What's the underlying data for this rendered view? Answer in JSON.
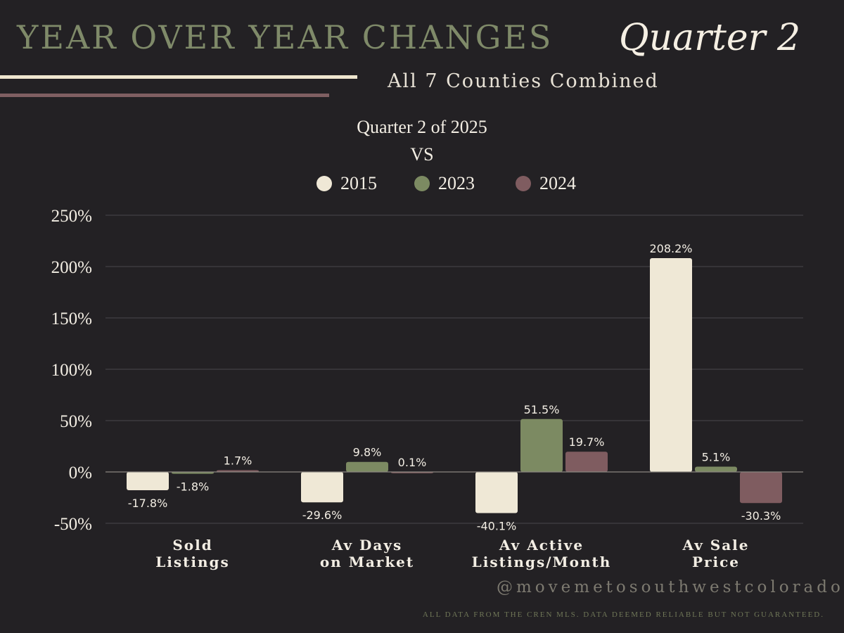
{
  "header": {
    "title": "YEAR OVER YEAR CHANGES",
    "quarter": "Quarter 2",
    "subtitle": "All 7 Counties Combined"
  },
  "footer": {
    "handle": "@movemetosouthwestcolorado",
    "disclaimer": "ALL DATA FROM THE CREN MLS. DATA DEEMED RELIABLE BUT NOT GUARANTEED."
  },
  "chart_data": {
    "type": "bar",
    "title_line1": "Quarter 2 of 2025",
    "title_line2": "VS",
    "categories": [
      [
        "Sold",
        "Listings"
      ],
      [
        "Av Days",
        "on Market"
      ],
      [
        "Av Active",
        "Listings/Month"
      ],
      [
        "Av Sale",
        "Price"
      ]
    ],
    "series": [
      {
        "name": "2015",
        "color": "#efe8d6",
        "values": [
          -17.8,
          -29.6,
          -40.1,
          208.2
        ]
      },
      {
        "name": "2023",
        "color": "#7c8a62",
        "values": [
          -1.8,
          9.8,
          51.5,
          5.1
        ]
      },
      {
        "name": "2024",
        "color": "#7f5c60",
        "values": [
          1.7,
          0.1,
          19.7,
          -30.3
        ]
      }
    ],
    "y_ticks": [
      "250%",
      "200%",
      "150%",
      "100%",
      "50%",
      "0%",
      "-50%"
    ],
    "y_tick_values": [
      250,
      200,
      150,
      100,
      50,
      0,
      -50
    ],
    "ylim": [
      -50,
      250
    ],
    "value_suffix": "%",
    "grid": true,
    "legend_position": "top-center"
  }
}
